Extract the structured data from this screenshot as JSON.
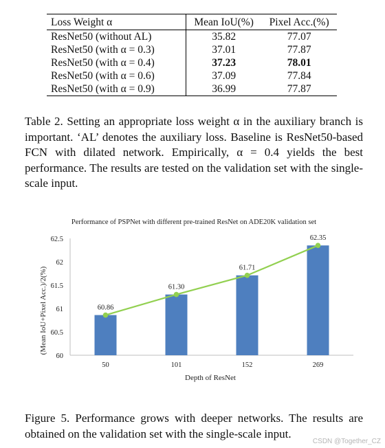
{
  "table": {
    "headers": [
      "Loss Weight α",
      "Mean IoU(%)",
      "Pixel Acc.(%)"
    ],
    "rows": [
      {
        "label": "ResNet50 (without AL)",
        "miou": "35.82",
        "pacc": "77.07",
        "best": false
      },
      {
        "label": "ResNet50 (with α = 0.3)",
        "miou": "37.01",
        "pacc": "77.87",
        "best": false
      },
      {
        "label": "ResNet50 (with α = 0.4)",
        "miou": "37.23",
        "pacc": "78.01",
        "best": true
      },
      {
        "label": "ResNet50 (with α = 0.6)",
        "miou": "37.09",
        "pacc": "77.84",
        "best": false
      },
      {
        "label": "ResNet50 (with α = 0.9)",
        "miou": "36.99",
        "pacc": "77.87",
        "best": false
      }
    ]
  },
  "table_caption": "Table 2. Setting an appropriate loss weight α in the auxiliary branch is important. ‘AL’ denotes the auxiliary loss. Baseline is ResNet50-based FCN with dilated network. Empirically, α = 0.4 yields the best performance. The results are tested on the validation set with the single-scale input.",
  "chart_data": {
    "type": "bar",
    "title": "Performance of PSPNet with different pre-trained ResNet on ADE20K validation set",
    "xlabel": "Depth of ResNet",
    "ylabel": "(Mean IoU+Pixel Acc.)/2(%)",
    "categories": [
      "50",
      "101",
      "152",
      "269"
    ],
    "values": [
      60.86,
      61.3,
      61.71,
      62.35
    ],
    "value_labels": [
      "60.86",
      "61.30",
      "61.71",
      "62.35"
    ],
    "ylim": [
      60,
      62.5
    ],
    "yticks": [
      "60",
      "60.5",
      "61",
      "61.5",
      "62",
      "62.5"
    ],
    "line_overlay": true,
    "grid": false,
    "colors": {
      "bar": "#4e7fbf",
      "line": "#92d050"
    }
  },
  "figure_caption": "Figure 5. Performance grows with deeper networks. The results are obtained on the validation set with the single-scale input.",
  "watermark": "CSDN @Together_CZ"
}
